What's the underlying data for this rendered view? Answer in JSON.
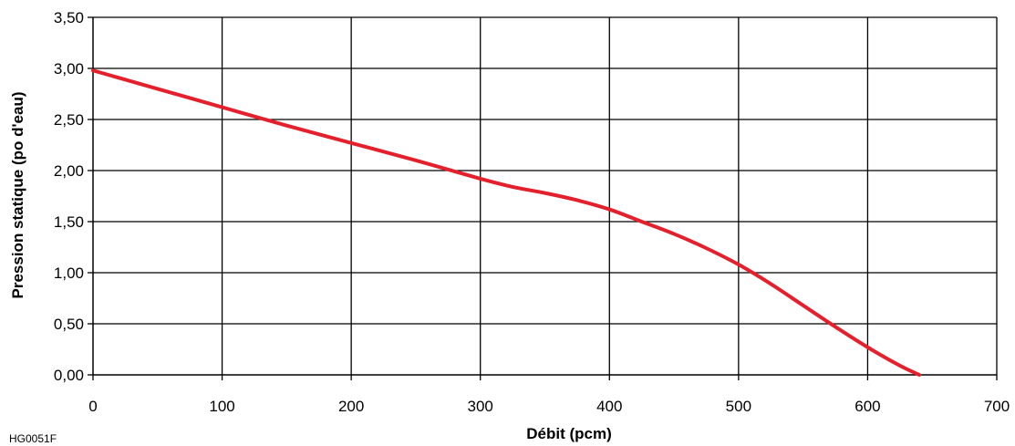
{
  "chart_data": {
    "type": "line",
    "xlabel": "Débit (pcm)",
    "ylabel": "Pression statique (po d'eau)",
    "xlim": [
      0,
      700
    ],
    "ylim": [
      0,
      3.5
    ],
    "x_ticks": [
      "0",
      "100",
      "200",
      "300",
      "400",
      "500",
      "600",
      "700"
    ],
    "y_ticks": [
      "0,00",
      "0,50",
      "1,00",
      "1,50",
      "2,00",
      "2,50",
      "3,00",
      "3,50"
    ],
    "grid": true,
    "series": [
      {
        "color": "#e3202b",
        "x": [
          0,
          50,
          100,
          150,
          200,
          250,
          300,
          325,
          350,
          375,
          400,
          425,
          450,
          475,
          500,
          525,
          550,
          575,
          600,
          625,
          640
        ],
        "y": [
          2.98,
          2.8,
          2.62,
          2.44,
          2.27,
          2.1,
          1.92,
          1.84,
          1.78,
          1.71,
          1.62,
          1.5,
          1.38,
          1.24,
          1.08,
          0.89,
          0.68,
          0.47,
          0.27,
          0.09,
          0.0
        ]
      }
    ]
  },
  "figure_code": "HG0051F"
}
